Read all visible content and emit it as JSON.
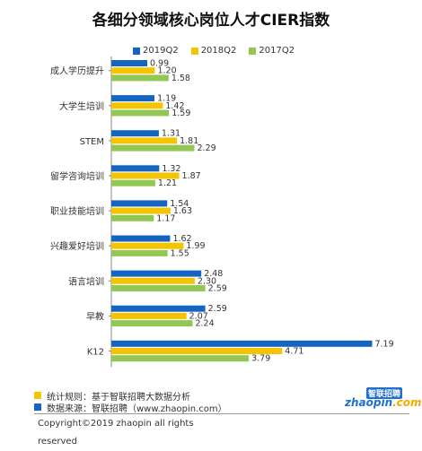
{
  "chart_data": {
    "type": "bar",
    "orientation": "horizontal",
    "title": "各细分领域核心岗位人才CIER指数",
    "categories": [
      "成人学历提升",
      "大学生培训",
      "STEM",
      "留学咨询培训",
      "职业技能培训",
      "兴趣爱好培训",
      "语言培训",
      "早教",
      "K12"
    ],
    "series": [
      {
        "name": "2019Q2",
        "color": "#1565c0",
        "values": [
          0.99,
          1.19,
          1.31,
          1.32,
          1.54,
          1.62,
          2.48,
          2.59,
          7.19
        ]
      },
      {
        "name": "2018Q2",
        "color": "#f5c400",
        "values": [
          1.2,
          1.42,
          1.81,
          1.87,
          1.63,
          1.99,
          2.3,
          2.07,
          4.71
        ]
      },
      {
        "name": "2017Q2",
        "color": "#92c753",
        "values": [
          1.58,
          1.59,
          2.29,
          1.21,
          1.17,
          1.55,
          2.59,
          2.24,
          3.79
        ]
      }
    ],
    "xlim": [
      0,
      8
    ],
    "grid": false,
    "legend_position": "top"
  },
  "footer": {
    "rule_label": "统计规则：基于智联招聘大数据分析",
    "source_label": "数据来源：智联招聘（www.zhaopin.com）",
    "rule_color": "#f5c400",
    "source_color": "#1565c0"
  },
  "copyright": "Copyright©2019 zhaopin all rights reserved",
  "logo": {
    "top_text": "智联招聘",
    "main_text": "zhaopin",
    "domain_text": ".com"
  }
}
